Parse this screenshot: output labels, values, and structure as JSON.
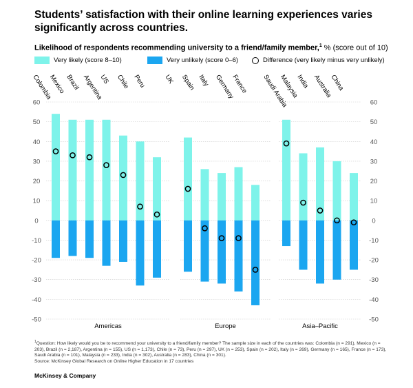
{
  "title": "Students’ satisfaction with their online learning experiences varies significantly across countries.",
  "subtitle": {
    "main": "Likelihood of respondents recommending university to a friend/family member,",
    "sup": "1",
    "unit": "% (score out of 10)"
  },
  "legend": {
    "likely": "Very likely (score 8–10)",
    "unlikely": "Very unlikely (score 0–6)",
    "difference": "Difference (very likely minus very unlikely)"
  },
  "colors": {
    "likely": "#7ef3ea",
    "unlikely": "#1ba6f0",
    "marker": "#000000",
    "grid": "#c9c9c9"
  },
  "chart_data": {
    "type": "bar",
    "ylim": [
      -50,
      60
    ],
    "yticks": [
      60,
      50,
      40,
      30,
      20,
      10,
      0,
      -10,
      -20,
      -30,
      -40,
      -50
    ],
    "groups": [
      {
        "name": "Americas",
        "categories": [
          "Colombia",
          "Mexico",
          "Brazil",
          "Argentina",
          "US",
          "Chile",
          "Peru"
        ],
        "very_likely": [
          54,
          51,
          51,
          51,
          43,
          40,
          32
        ],
        "very_unlikely": [
          -19,
          -18,
          -19,
          -23,
          -21,
          -33,
          -29
        ],
        "difference": [
          35,
          33,
          32,
          28,
          23,
          7,
          3
        ]
      },
      {
        "name": "Europe",
        "categories": [
          "UK",
          "Spain",
          "Italy",
          "Germany",
          "France"
        ],
        "very_likely": [
          42,
          26,
          24,
          27,
          18
        ],
        "very_unlikely": [
          -26,
          -31,
          -32,
          -36,
          -43
        ],
        "difference": [
          16,
          -4,
          -9,
          -9,
          -25
        ]
      },
      {
        "name": "Asia–Pacific",
        "categories": [
          "Saudi Arabia",
          "Malaysia",
          "India",
          "Australia",
          "China"
        ],
        "very_likely": [
          51,
          34,
          37,
          30,
          24
        ],
        "very_unlikely": [
          -13,
          -25,
          -32,
          -30,
          -25
        ],
        "difference": [
          39,
          9,
          5,
          0,
          -1
        ]
      }
    ]
  },
  "footnote": {
    "sup": "1",
    "question": "Question: How likely would you be to recommend your university to a friend/family member? The sample size in each of the countries was: Colombia (n = 291), Mexico (n = 203), Brazil (n = 2,187), Argentina (n = 155), US (n = 1,173), Chile (n = 73), Peru (n = 297), UK (n = 253), Spain (n = 202), Italy (n = 269), Germany (n = 165), France (n = 173), Saudi Arabia (n = 101), Malaysia (n = 233), India (n = 302), Australia (n = 283), China (n = 301).",
    "source": "Source: McKinsey Global Research on Online Higher Education in 17 countries"
  },
  "brand": "McKinsey & Company"
}
